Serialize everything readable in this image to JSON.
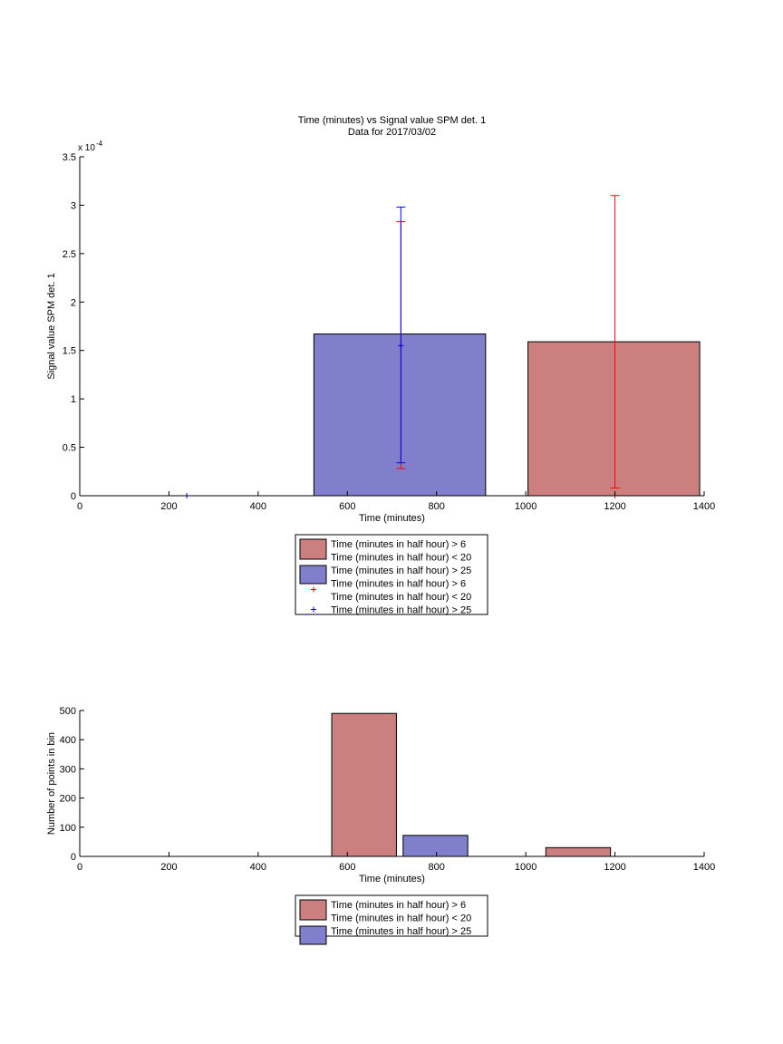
{
  "chart_data": [
    {
      "type": "bar",
      "title": "Time (minutes) vs Signal value SPM det. 1",
      "subtitle": "Data for 2017/03/02",
      "xlabel": "Time (minutes)",
      "ylabel": "Signal value SPM det. 1",
      "xlim": [
        0,
        1400
      ],
      "ylim": [
        0,
        3.5
      ],
      "y_exponent_label": "x 10",
      "y_exponent_power": "-4",
      "xticks": [
        "0",
        "200",
        "400",
        "600",
        "800",
        "1000",
        "1200",
        "1400"
      ],
      "yticks": [
        "0",
        "0.5",
        "1",
        "1.5",
        "2",
        "2.5",
        "3",
        "3.5"
      ],
      "series": [
        {
          "name": "Time (minutes in half hour) > 6\nTime (minutes in half hour) < 20",
          "color": "#cc7f7f",
          "bars": [
            {
              "x0": 1005,
              "x1": 1390,
              "value": 1.59
            }
          ],
          "errorbars": [
            {
              "x": 1200,
              "y": 0.0,
              "low": 0.08,
              "high": 3.1
            }
          ],
          "marker_color": "#ff0000"
        },
        {
          "name": "Time (minutes in half hour) > 25",
          "color": "#7f7fcc",
          "bars": [
            {
              "x0": 525,
              "x1": 910,
              "value": 1.67
            }
          ],
          "errorbars": [
            {
              "x": 240,
              "y": 0.0,
              "low": 0.0,
              "high": 0.0
            },
            {
              "x": 720,
              "y": 1.55,
              "low": 0.28,
              "high": 2.83,
              "color": "#ff0000"
            },
            {
              "x": 720,
              "y": 1.55,
              "low": 0.34,
              "high": 2.98
            }
          ],
          "marker_color": "#0000ff"
        }
      ],
      "legend": [
        {
          "kind": "patch",
          "color": "#cc7f7f",
          "lines": [
            "Time (minutes in half hour) > 6",
            "Time (minutes in half hour) < 20"
          ]
        },
        {
          "kind": "patch",
          "color": "#7f7fcc",
          "lines": [
            "Time (minutes in half hour) > 25"
          ]
        },
        {
          "kind": "marker",
          "color": "#ff0000",
          "lines": [
            "Time (minutes in half hour) > 6",
            "Time (minutes in half hour) < 20"
          ]
        },
        {
          "kind": "marker",
          "color": "#0000ff",
          "lines": [
            "Time (minutes in half hour) > 25"
          ]
        }
      ],
      "legend_position": "below"
    },
    {
      "type": "bar",
      "title": "",
      "xlabel": "Time (minutes)",
      "ylabel": "Number of points in bin",
      "xlim": [
        0,
        1400
      ],
      "ylim": [
        0,
        500
      ],
      "xticks": [
        "0",
        "200",
        "400",
        "600",
        "800",
        "1000",
        "1200",
        "1400"
      ],
      "yticks": [
        "0",
        "100",
        "200",
        "300",
        "400",
        "500"
      ],
      "series": [
        {
          "name": "Time (minutes in half hour) > 6\nTime (minutes in half hour) < 20",
          "color": "#cc7f7f",
          "bars": [
            {
              "x0": 565,
              "x1": 710,
              "value": 490
            },
            {
              "x0": 1045,
              "x1": 1190,
              "value": 30
            }
          ]
        },
        {
          "name": "Time (minutes in half hour) > 25",
          "color": "#7f7fcc",
          "bars": [
            {
              "x0": 725,
              "x1": 870,
              "value": 72
            }
          ]
        }
      ],
      "legend": [
        {
          "kind": "patch",
          "color": "#cc7f7f",
          "lines": [
            "Time (minutes in half hour) > 6",
            "Time (minutes in half hour) < 20"
          ]
        },
        {
          "kind": "patch",
          "color": "#7f7fcc",
          "lines": [
            "Time (minutes in half hour) > 25"
          ]
        }
      ],
      "legend_position": "below"
    }
  ]
}
